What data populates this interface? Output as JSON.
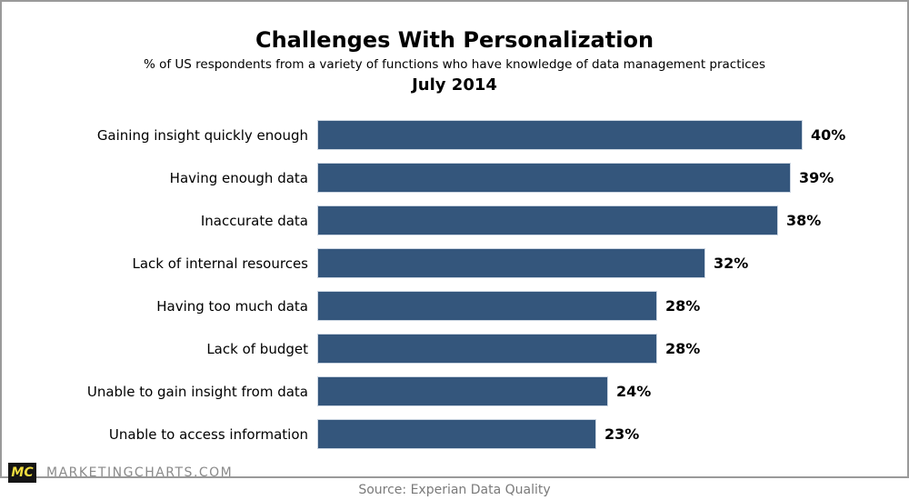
{
  "header": {
    "title": "Challenges With Personalization",
    "subtitle": "% of US respondents from a variety of functions who have knowledge of data management practices",
    "period": "July 2014"
  },
  "chart_data": {
    "type": "bar",
    "orientation": "horizontal",
    "title": "Challenges With Personalization",
    "subtitle": "% of US respondents from a variety of functions who have knowledge of data management practices",
    "period": "July 2014",
    "categories": [
      "Gaining insight quickly enough",
      "Having enough data",
      "Inaccurate data",
      "Lack of internal resources",
      "Having too much data",
      "Lack of budget",
      "Unable to gain insight from data",
      "Unable to access information"
    ],
    "values": [
      40,
      39,
      38,
      32,
      28,
      28,
      24,
      23
    ],
    "value_suffix": "%",
    "xlim": [
      0,
      44
    ],
    "grid": false,
    "legend": "none",
    "bar_color": "#34567c"
  },
  "footer": {
    "logo_text": "MC",
    "site_text": "MARKETINGCHARTS.COM",
    "source": "Source: Experian Data Quality"
  },
  "colors": {
    "bar": "#34567c",
    "bar_border": "#ccd6e2",
    "frame_border": "#9a9a9a",
    "logo_bg": "#141414",
    "logo_text": "#f0dd3f",
    "muted_text": "#8a8a8a"
  }
}
